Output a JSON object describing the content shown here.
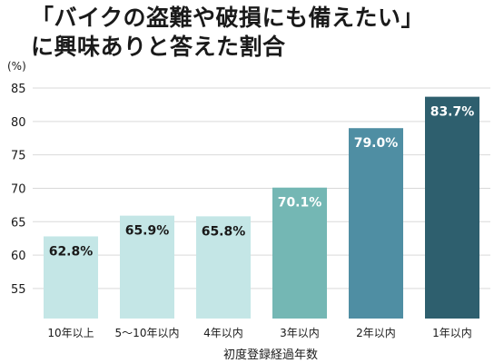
{
  "title": {
    "line1": "「バイクの盗難や破損にも備えたい」",
    "line2": "に興味ありと答えた割合"
  },
  "chart_data": {
    "type": "bar",
    "title": "「バイクの盗難や破損にも備えたい」に興味ありと答えた割合",
    "xlabel": "初度登録経過年数",
    "ylabel": "",
    "y_unit": "(%)",
    "categories": [
      "10年以上",
      "5〜10年以内",
      "4年以内",
      "3年以内",
      "2年以内",
      "1年以内"
    ],
    "values": [
      62.8,
      65.9,
      65.8,
      70.1,
      79.0,
      83.7
    ],
    "data_labels": [
      "62.8%",
      "65.9%",
      "65.8%",
      "70.1%",
      "79.0%",
      "83.7%"
    ],
    "bar_colors": [
      "#c4e6e6",
      "#c4e6e6",
      "#c4e6e6",
      "#74b7b4",
      "#4f8ea3",
      "#2e5f6e"
    ],
    "label_colors": [
      "#1a1a1a",
      "#1a1a1a",
      "#1a1a1a",
      "#ffffff",
      "#ffffff",
      "#ffffff"
    ],
    "yticks": [
      55,
      60,
      65,
      70,
      75,
      80,
      85
    ],
    "ylim": [
      50.5,
      86.5
    ],
    "grid": true,
    "legend": "none"
  }
}
